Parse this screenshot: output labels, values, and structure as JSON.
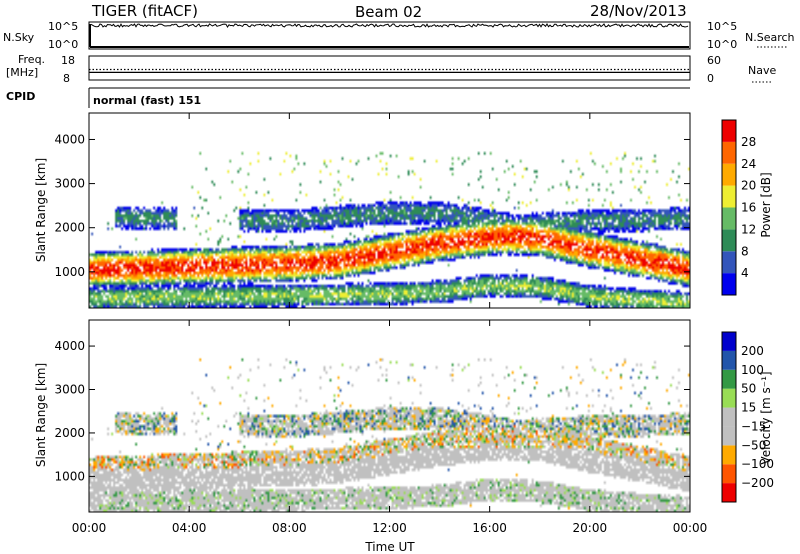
{
  "header": {
    "station": "TIGER (fitACF)",
    "beam": "Beam 02",
    "date": "28/Nov/2013"
  },
  "aux_panels": {
    "nsky": {
      "label": "N.Sky",
      "ticks": [
        "10^5",
        "10^0"
      ]
    },
    "nsearch": {
      "label": "N.Search",
      "ticks": [
        "10^5",
        "10^0"
      ]
    },
    "freq": {
      "label_line1": "Freq.",
      "label_line2": "[MHz]",
      "ticks": [
        "18",
        "8"
      ],
      "value_mhz": 11
    },
    "nave": {
      "label": "Nave",
      "ticks": [
        "60",
        "0"
      ],
      "value": 26
    },
    "cpid": {
      "label": "CPID",
      "mode": "normal (fast) 151"
    }
  },
  "colors": {
    "power_scale": [
      "#0000ee",
      "#3355bb",
      "#2e8b57",
      "#66bb66",
      "#eeee33",
      "#ffaa00",
      "#ff6600",
      "#ee0000"
    ],
    "velocity_scale": [
      "#ee0000",
      "#ff5500",
      "#ffaa00",
      "#c0c0c0",
      "#c0c0c0",
      "#99dd55",
      "#339944",
      "#2255aa",
      "#0000cc"
    ],
    "ground_scatter": "#c0c0c0"
  },
  "chart_data": [
    {
      "type": "heatmap",
      "name": "power-panel",
      "title": "",
      "xlabel": "Time UT",
      "ylabel": "Slant Range [km]",
      "xlim_hours": [
        0,
        24
      ],
      "ylim_km": [
        180,
        4600
      ],
      "yticks": [
        1000,
        2000,
        3000,
        4000
      ],
      "xtick_labels": [
        "00:00",
        "04:00",
        "08:00",
        "12:00",
        "16:00",
        "20:00",
        "00:00"
      ],
      "colorbar": {
        "label": "Power [dB]",
        "ticks": [
          4,
          8,
          12,
          16,
          20,
          24,
          28
        ],
        "range": [
          0,
          30
        ]
      },
      "bands": [
        {
          "kind": "main",
          "t": [
            0,
            2,
            4,
            6,
            8,
            10,
            12,
            14,
            16,
            17,
            18,
            20,
            22,
            24
          ],
          "center_km": [
            1050,
            1080,
            1120,
            1150,
            1180,
            1250,
            1450,
            1650,
            1780,
            1800,
            1760,
            1500,
            1280,
            1050
          ],
          "width_km": 420,
          "peak_db": 27
        },
        {
          "kind": "upper",
          "t": [
            0,
            4,
            8,
            11,
            14,
            17,
            20,
            24
          ],
          "center_km": [
            2250,
            2180,
            2150,
            2300,
            2350,
            2050,
            2150,
            2200
          ],
          "width_km": 260,
          "peak_db": 9
        },
        {
          "kind": "near",
          "t": [
            0,
            6,
            10,
            12,
            14,
            16,
            18,
            20,
            22,
            24
          ],
          "center_km": [
            400,
            450,
            480,
            500,
            550,
            700,
            650,
            450,
            350,
            300
          ],
          "width_km": 260,
          "peak_db": 14
        }
      ]
    },
    {
      "type": "heatmap",
      "name": "velocity-panel",
      "title": "",
      "xlabel": "Time UT",
      "ylabel": "Slant Range [km]",
      "xlim_hours": [
        0,
        24
      ],
      "ylim_km": [
        180,
        4600
      ],
      "yticks": [
        1000,
        2000,
        3000,
        4000
      ],
      "xtick_labels": [
        "00:00",
        "04:00",
        "08:00",
        "12:00",
        "16:00",
        "20:00",
        "00:00"
      ],
      "colorbar": {
        "label": "Velocity [m s⁻¹]",
        "ticks": [
          "200",
          "100",
          "50",
          "15",
          "−15",
          "−50",
          "−100",
          "−200"
        ],
        "range": [
          -250,
          250
        ]
      }
    }
  ]
}
